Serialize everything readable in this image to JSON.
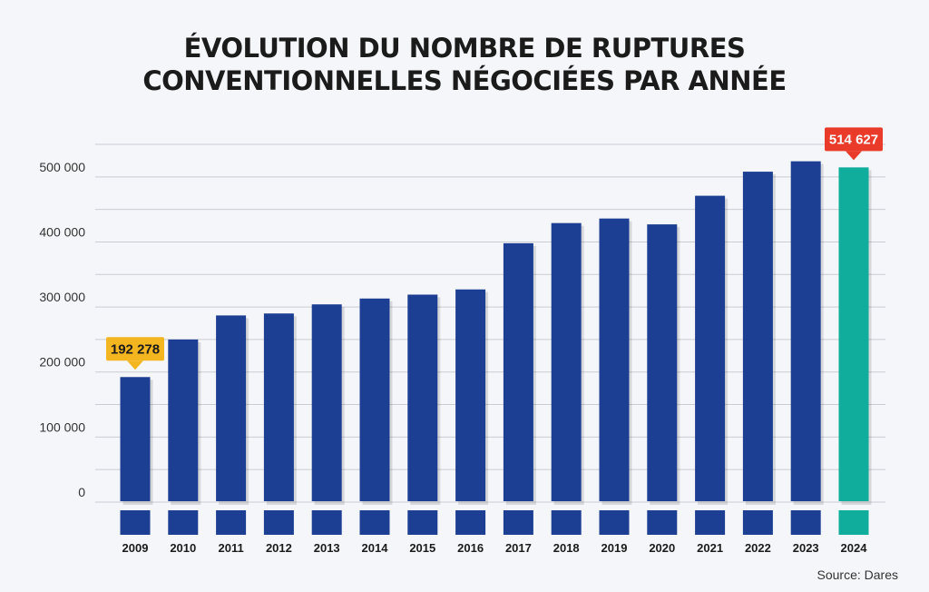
{
  "chart_data": {
    "type": "bar",
    "title_lines": [
      "ÉVOLUTION DU NOMBRE DE RUPTURES",
      "CONVENTIONNELLES NÉGOCIÉES PAR ANNÉE"
    ],
    "categories": [
      "2009",
      "2010",
      "2011",
      "2012",
      "2013",
      "2014",
      "2015",
      "2016",
      "2017",
      "2018",
      "2019",
      "2020",
      "2021",
      "2022",
      "2023",
      "2024"
    ],
    "values": [
      192278,
      250000,
      287000,
      290000,
      304000,
      313000,
      319000,
      327000,
      398000,
      429000,
      436000,
      427000,
      471000,
      508000,
      524000,
      514627
    ],
    "ylim": [
      0,
      550000
    ],
    "ytick_values": [
      0,
      100000,
      200000,
      300000,
      400000,
      500000
    ],
    "ytick_labels": [
      "0",
      "100 000",
      "200 000",
      "300 000",
      "400 000",
      "500 000"
    ],
    "grid": true,
    "annotations": [
      {
        "category": "2009",
        "label": "192 278",
        "color": "#f3b520",
        "text_color": "#1b1b1b"
      },
      {
        "category": "2024",
        "label": "514 627",
        "color": "#ea3a2a",
        "text_color": "#ffffff"
      }
    ],
    "colors": {
      "bar": "#1c3f93",
      "highlight_bar": "#10ad9c",
      "highlight_category": "2024",
      "grid": "#c9ccd4"
    }
  },
  "source": "Source: Dares"
}
